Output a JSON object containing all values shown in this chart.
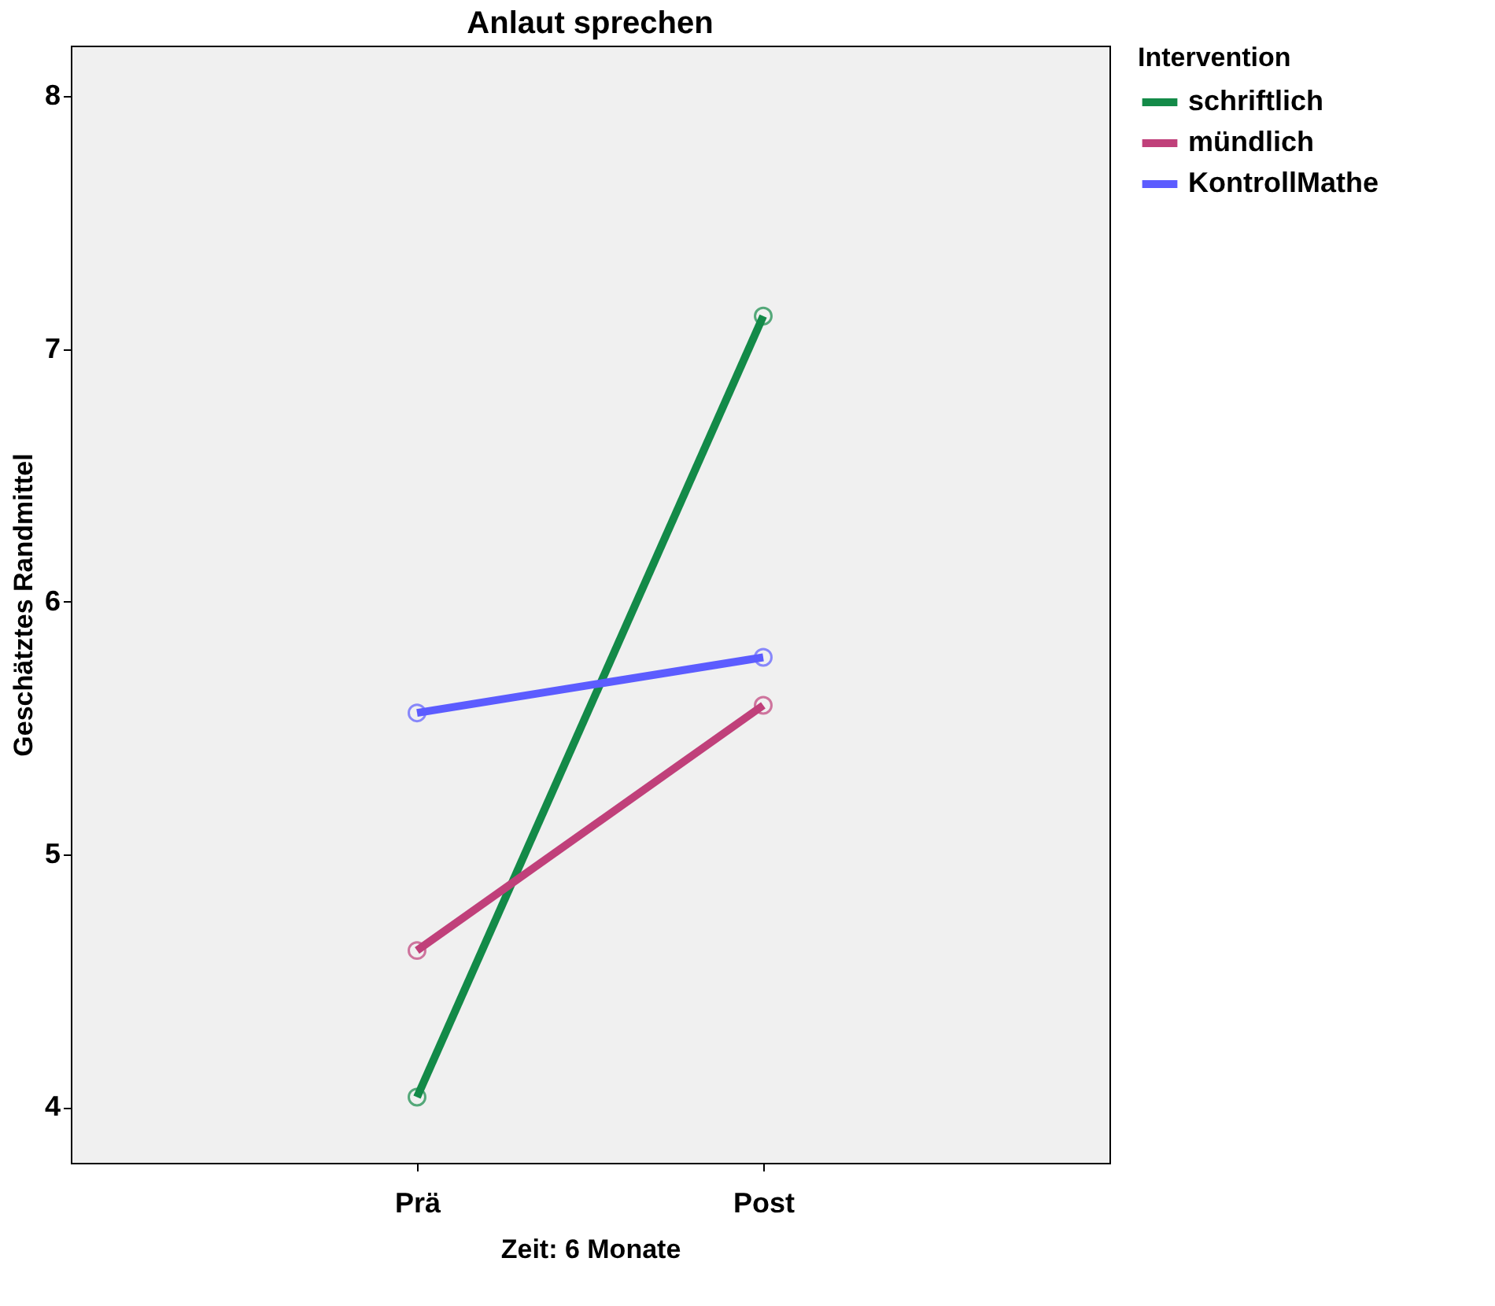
{
  "chart_data": {
    "type": "line",
    "title": "Anlaut sprechen",
    "xlabel": "Zeit: 6 Monate",
    "ylabel": "Geschätztes Randmittel",
    "legend_title": "Intervention",
    "categories": [
      "Prä",
      "Post"
    ],
    "series": [
      {
        "name": "schriftlich",
        "color": "#138a48",
        "values": [
          4.04,
          7.13
        ]
      },
      {
        "name": "mündlich",
        "color": "#c0407a",
        "values": [
          4.62,
          5.59
        ]
      },
      {
        "name": "KontrollMathe",
        "color": "#5c5cff",
        "values": [
          5.56,
          5.78
        ]
      }
    ],
    "ylim": [
      3.78,
      8.2
    ],
    "yticks": [
      4,
      5,
      6,
      7,
      8
    ],
    "grid": false,
    "legend": "right",
    "marker": "circle",
    "line_style": "solid"
  }
}
